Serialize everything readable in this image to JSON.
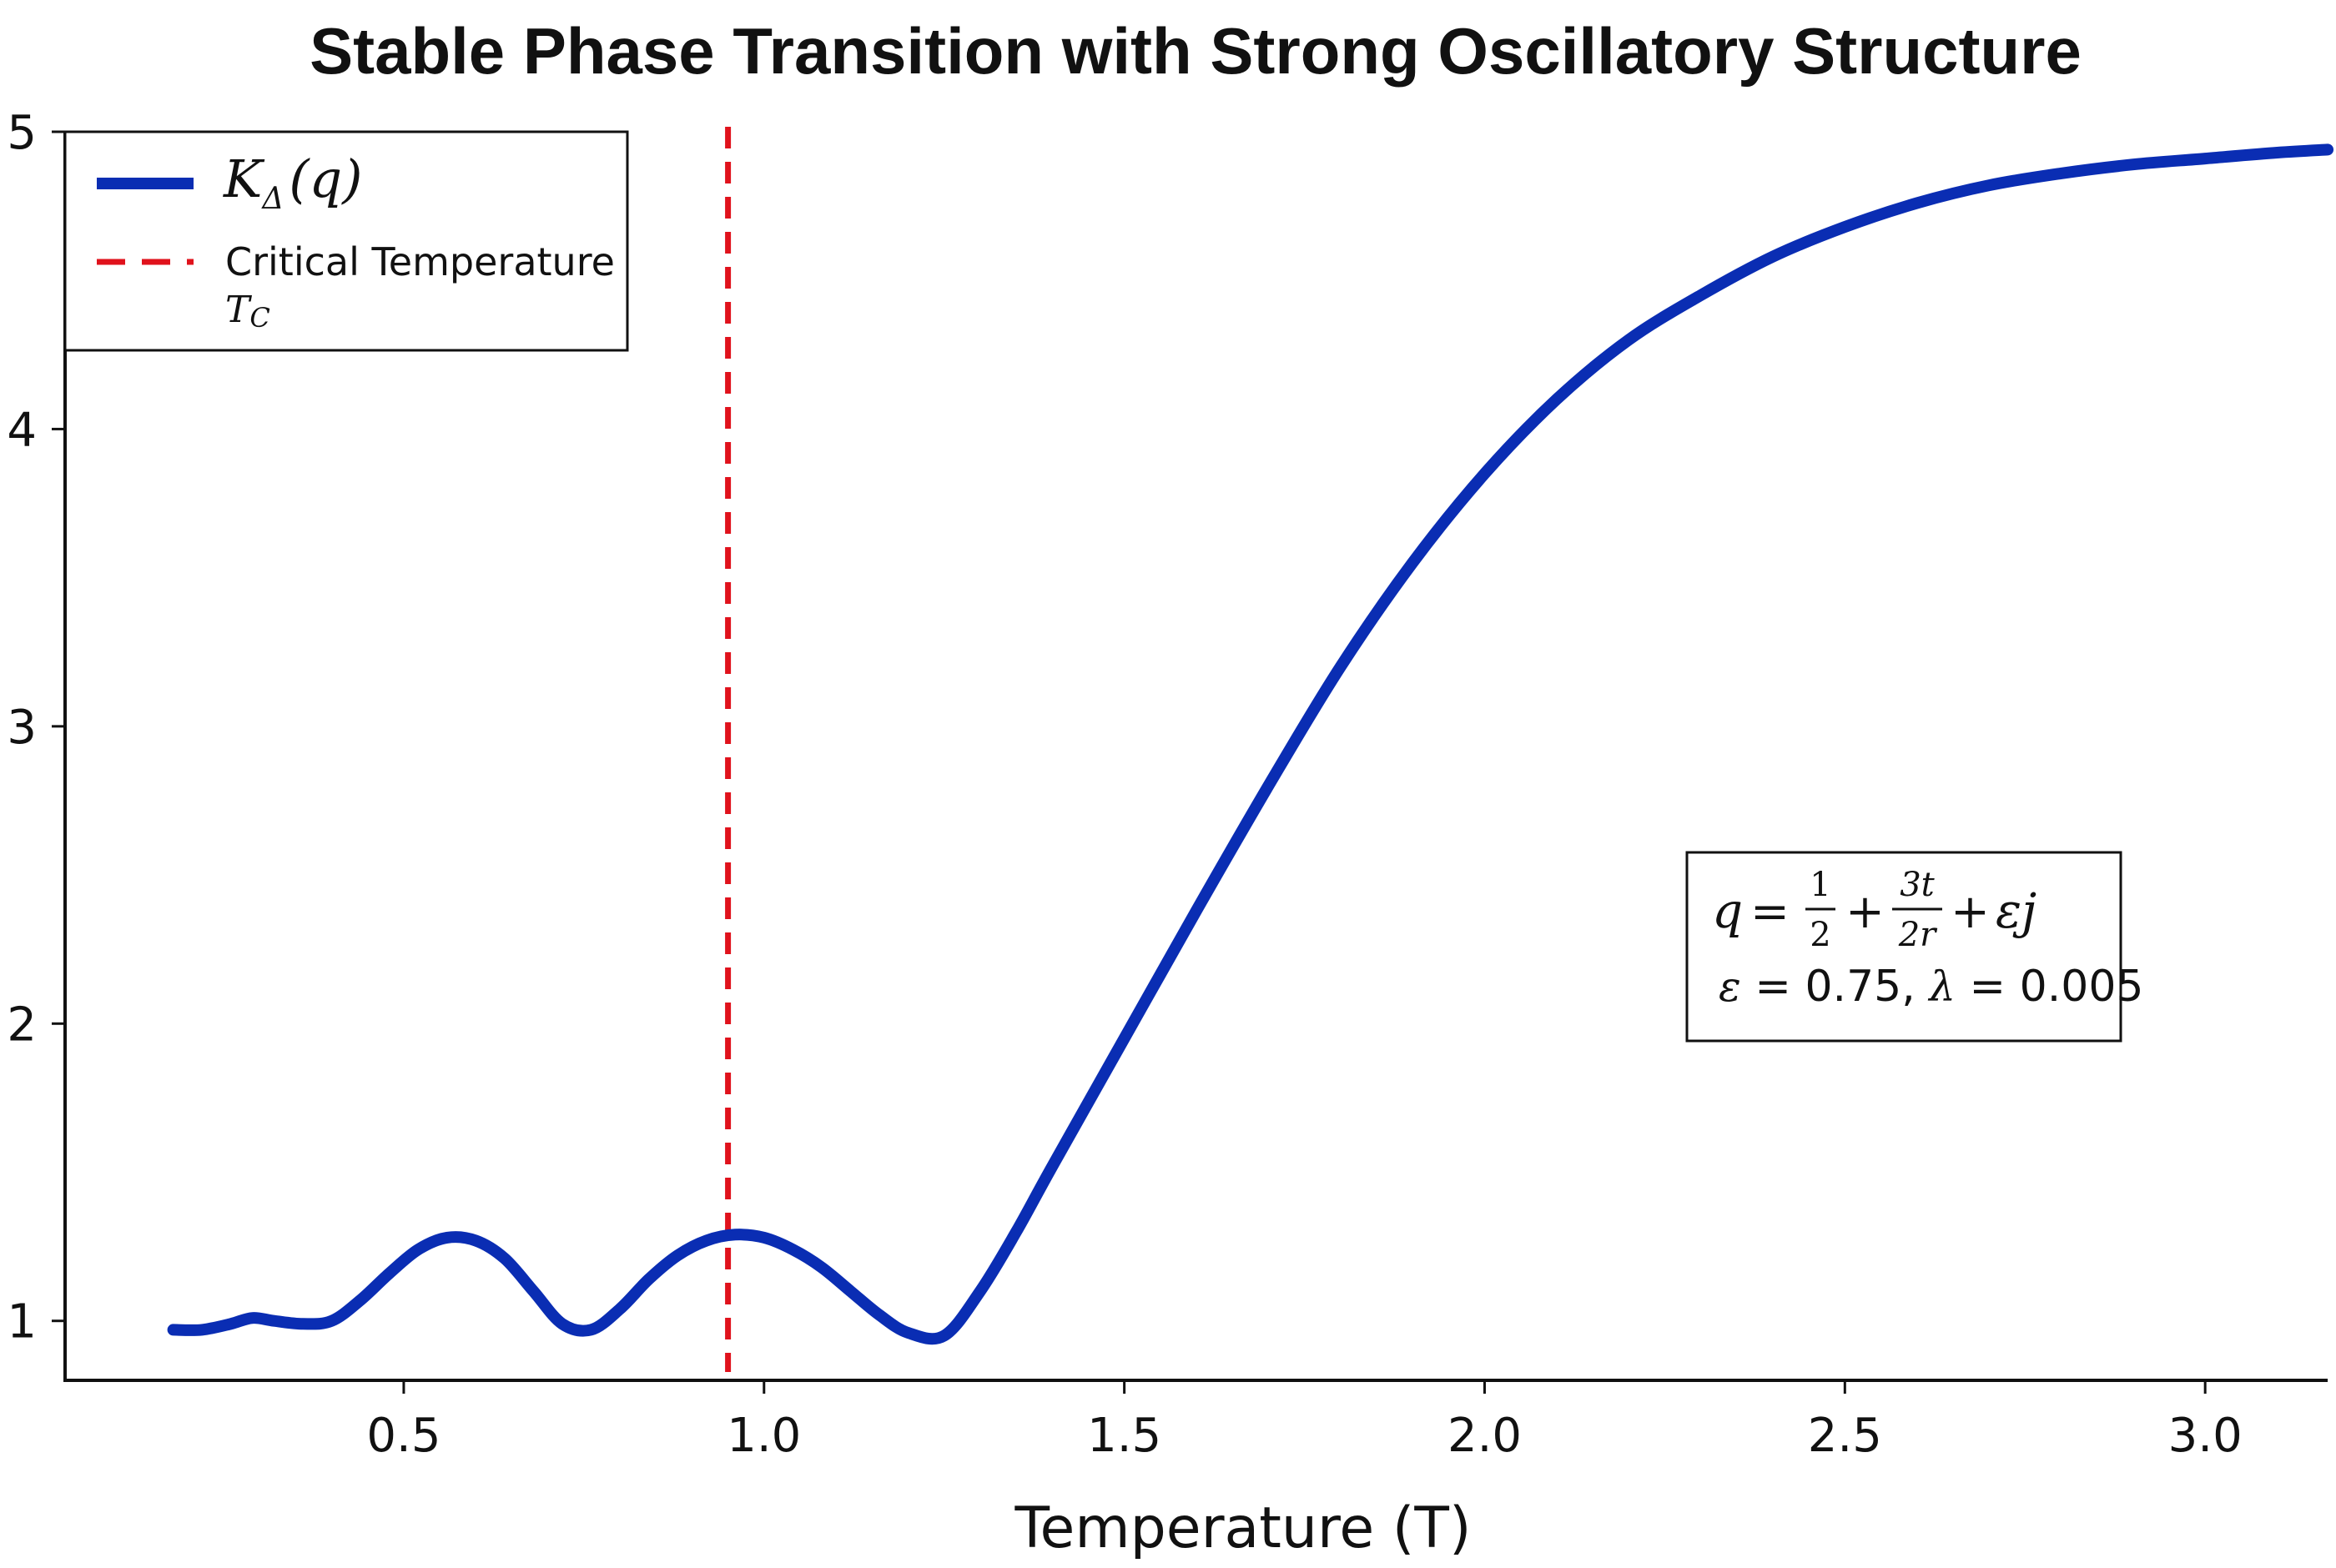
{
  "chart_data": {
    "type": "line",
    "title": "Stable Phase Transition with Strong Oscillatory Structure",
    "xlabel": "Temperature (T)",
    "ylabel": "",
    "xlim": [
      0.03,
      3.17
    ],
    "ylim": [
      0.8,
      5.0
    ],
    "xticks": [
      0.5,
      1.0,
      1.5,
      2.0,
      2.5,
      3.0
    ],
    "xtick_labels": [
      "0.5",
      "1.0",
      "1.5",
      "2.0",
      "2.5",
      "3.0"
    ],
    "yticks": [
      1,
      2,
      3,
      4,
      5
    ],
    "ytick_labels": [
      "1",
      "2",
      "3",
      "4",
      "5"
    ],
    "grid": false,
    "legend_position": "top-left",
    "series": [
      {
        "name": "K_Δ(q)",
        "legend_main": "K",
        "legend_sub": "Δ",
        "legend_arg": "(q)",
        "color": "#0a2db3",
        "style": "solid",
        "x": [
          0.18,
          0.22,
          0.26,
          0.29,
          0.32,
          0.36,
          0.4,
          0.44,
          0.48,
          0.52,
          0.56,
          0.6,
          0.64,
          0.68,
          0.72,
          0.76,
          0.8,
          0.84,
          0.88,
          0.92,
          0.96,
          1.0,
          1.04,
          1.08,
          1.12,
          1.16,
          1.2,
          1.25,
          1.3,
          1.35,
          1.4,
          1.5,
          1.6,
          1.7,
          1.8,
          1.9,
          2.0,
          2.1,
          2.2,
          2.3,
          2.4,
          2.5,
          2.6,
          2.7,
          2.8,
          2.9,
          3.0,
          3.1,
          3.17
        ],
        "y": [
          0.97,
          0.97,
          0.99,
          1.01,
          1.0,
          0.99,
          1.0,
          1.07,
          1.16,
          1.24,
          1.28,
          1.27,
          1.21,
          1.1,
          0.99,
          0.97,
          1.04,
          1.14,
          1.22,
          1.27,
          1.29,
          1.28,
          1.24,
          1.18,
          1.1,
          1.02,
          0.96,
          0.95,
          1.1,
          1.3,
          1.52,
          1.95,
          2.38,
          2.8,
          3.2,
          3.55,
          3.85,
          4.1,
          4.3,
          4.45,
          4.58,
          4.68,
          4.76,
          4.82,
          4.86,
          4.89,
          4.91,
          4.93,
          4.94
        ]
      },
      {
        "name": "Critical Temperature T_C",
        "legend_line1": "Critical Temperature",
        "legend_line2_main": "T",
        "legend_line2_sub": "C",
        "color": "#e0121c",
        "style": "dashed",
        "vline_x": 0.95
      }
    ],
    "annotations": [
      {
        "position": "right",
        "formula": {
          "lhs": "q",
          "eq": "=",
          "frac1_num": "1",
          "frac1_den": "2",
          "plus": "+",
          "frac2_num": "3t",
          "frac2_den": "2r",
          "tail": "εj"
        },
        "params": {
          "eps_symbol": "ε",
          "eps_text": " = 0.75, ",
          "lambda_symbol": "λ",
          "lambda_text": " = 0.005"
        }
      }
    ]
  }
}
